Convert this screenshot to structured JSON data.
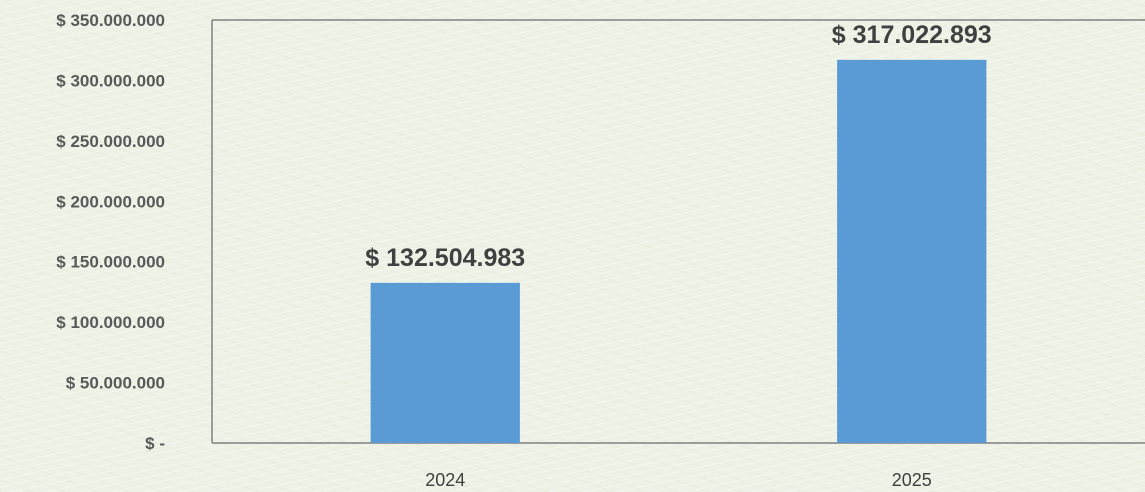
{
  "chart_data": {
    "type": "bar",
    "categories": [
      "2024",
      "2025"
    ],
    "values": [
      132504983,
      317022893
    ],
    "data_labels": [
      "$ 132.504.983",
      "$ 317.022.893"
    ],
    "y_tick_values": [
      0,
      50000000,
      100000000,
      150000000,
      200000000,
      250000000,
      300000000,
      350000000
    ],
    "y_tick_labels": [
      "$ -",
      "$ 50.000.000",
      "$ 100.000.000",
      "$ 150.000.000",
      "$ 200.000.000",
      "$ 250.000.000",
      "$ 300.000.000",
      "$ 350.000.000"
    ],
    "ylim": [
      0,
      350000000
    ],
    "grid": false,
    "legend": "none",
    "bar_color": "#5b9bd5",
    "axis_color": "#808080"
  }
}
